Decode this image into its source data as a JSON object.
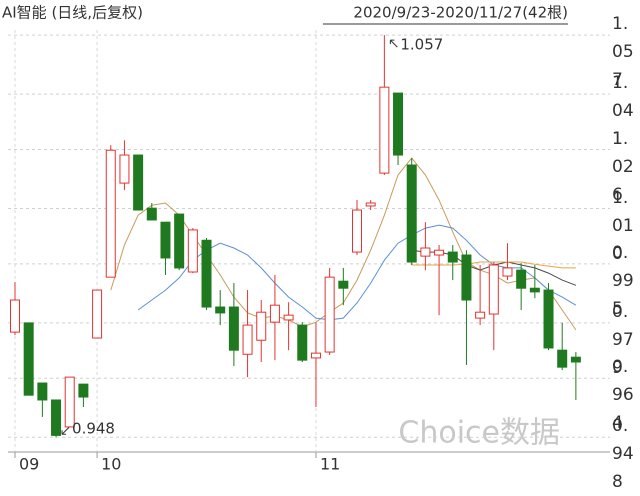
{
  "chart_data": {
    "type": "candlestick",
    "title": "AI智能 (日线,后复权)",
    "subtitle": "2020/9/23-2020/11/27(42根)",
    "watermark": "Choice数据",
    "categories": [
      "09",
      null,
      null,
      null,
      null,
      null,
      "10",
      null,
      null,
      null,
      null,
      null,
      null,
      null,
      null,
      null,
      null,
      null,
      null,
      null,
      null,
      null,
      "11",
      null,
      null,
      null,
      null,
      null,
      null,
      null,
      null,
      null,
      null,
      null,
      null,
      null,
      null,
      null,
      null,
      null,
      null,
      null
    ],
    "open": [
      0.9765,
      0.979,
      0.9627,
      0.9581,
      0.9508,
      0.9624,
      0.9749,
      0.9914,
      1.0169,
      1.0245,
      1.0101,
      1.0063,
      1.0085,
      0.9928,
      1.0014,
      0.9833,
      0.9833,
      0.9705,
      0.9743,
      0.9792,
      0.9798,
      0.9784,
      0.9695,
      0.9711,
      0.9903,
      0.9982,
      1.0107,
      1.0196,
      1.0413,
      1.0218,
      0.9971,
      0.9974,
      0.9982,
      0.9974,
      0.9803,
      0.9814,
      0.9917,
      0.9933,
      0.9884,
      0.9879,
      0.9716,
      0.9697
    ],
    "high": [
      0.9901,
      0.979,
      0.9627,
      0.9581,
      0.9643,
      0.9624,
      0.9879,
      1.0272,
      1.0285,
      1.0245,
      1.0115,
      1.0063,
      1.0085,
      1.0047,
      1.002,
      0.9879,
      0.9898,
      0.9879,
      0.9852,
      0.992,
      0.9846,
      0.9792,
      0.979,
      0.9939,
      0.9939,
      1.0123,
      1.0123,
      1.057,
      1.0413,
      1.0237,
      1.0063,
      1.0001,
      1.0001,
      0.9987,
      0.9947,
      0.9955,
      1.0006,
      0.9952,
      0.9947,
      0.9898,
      0.979,
      0.9711
    ],
    "low": [
      0.9757,
      0.9594,
      0.9535,
      0.948,
      0.9508,
      0.9562,
      0.9749,
      0.9914,
      1.015,
      1.0096,
      1.0069,
      0.992,
      0.9933,
      0.9925,
      0.9825,
      0.9784,
      0.9673,
      0.9643,
      0.9684,
      0.9689,
      0.9716,
      0.9684,
      0.9562,
      0.9703,
      0.9838,
      0.9974,
      1.0096,
      1.0191,
      1.0218,
      0.9947,
      0.9933,
      0.9811,
      0.9906,
      0.9676,
      0.9784,
      0.9716,
      0.9906,
      0.9825,
      0.9857,
      0.9716,
      0.9662,
      0.9581
    ],
    "close": [
      0.9852,
      0.9594,
      0.9581,
      0.9485,
      0.9643,
      0.9589,
      0.9879,
      1.0258,
      1.0245,
      1.0096,
      1.0069,
      0.9966,
      0.9939,
      1.0042,
      0.9833,
      0.9817,
      0.9716,
      0.9784,
      0.9819,
      0.9838,
      0.9811,
      0.9689,
      0.9708,
      0.9914,
      0.9884,
      1.0096,
      1.0115,
      1.0429,
      1.0245,
      0.9955,
      0.9993,
      0.9987,
      0.9955,
      0.9852,
      0.9819,
      0.9947,
      0.9939,
      0.9884,
      0.9874,
      0.9722,
      0.967,
      0.9684
    ],
    "up_color": "#e3342f",
    "down_color": "#1f7a1f",
    "lines": [
      {
        "color": "#c99a5b",
        "values": [
          null,
          null,
          null,
          null,
          null,
          null,
          null,
          0.9879,
          1.0001,
          1.0082,
          1.0109,
          1.0115,
          1.0082,
          1.0028,
          0.9974,
          0.992,
          0.986,
          0.9817,
          0.9803,
          0.9809,
          0.9798,
          0.9779,
          0.9792,
          0.9819,
          0.9844,
          0.9906,
          0.9987,
          1.0082,
          1.0191,
          1.0237,
          1.0191,
          1.0123,
          1.0036,
          0.9955,
          0.9933,
          0.992,
          0.9898,
          0.9906,
          0.9912,
          0.9879,
          0.9825,
          0.9771
        ]
      },
      {
        "color": "#5b8fd8",
        "values": [
          null,
          null,
          null,
          null,
          null,
          null,
          null,
          null,
          null,
          0.9825,
          0.9852,
          0.9879,
          0.9912,
          0.996,
          0.9987,
          1.0006,
          0.9993,
          0.9974,
          0.9939,
          0.9898,
          0.986,
          0.9833,
          0.9803,
          0.9798,
          0.9803,
          0.9844,
          0.9898,
          0.996,
          1.0006,
          1.0028,
          1.0047,
          1.0055,
          1.0047,
          1.0014,
          0.9974,
          0.9947,
          0.9939,
          0.9939,
          0.9912,
          0.9879,
          0.986,
          0.9838
        ]
      },
      {
        "color": "#4a4a4a",
        "values": [
          null,
          null,
          null,
          null,
          null,
          null,
          null,
          null,
          null,
          null,
          null,
          null,
          null,
          null,
          null,
          null,
          null,
          null,
          null,
          null,
          null,
          null,
          null,
          null,
          null,
          null,
          null,
          null,
          null,
          0.9987,
          0.9982,
          0.9982,
          0.9974,
          0.9947,
          0.9933,
          0.9947,
          0.9955,
          0.9947,
          0.9939,
          0.9925,
          0.9906,
          0.9892
        ]
      },
      {
        "color": "#e9a544",
        "values": [
          null,
          null,
          null,
          null,
          null,
          null,
          null,
          null,
          null,
          null,
          null,
          null,
          null,
          null,
          null,
          null,
          null,
          null,
          null,
          null,
          null,
          null,
          null,
          null,
          null,
          null,
          null,
          null,
          null,
          0.9947,
          0.9947,
          0.9947,
          0.9947,
          0.9949,
          0.9955,
          0.9955,
          0.9955,
          0.9955,
          0.9949,
          0.9944,
          0.9939,
          0.9939
        ]
      }
    ],
    "ylim": [
      0.944,
      1.0584
    ],
    "yticks": [
      1.057,
      1.041,
      1.026,
      {
        "value": 1.01,
        "label": "1.010"
      },
      0.995,
      0.979,
      0.964,
      0.948
    ],
    "grid": true
  }
}
